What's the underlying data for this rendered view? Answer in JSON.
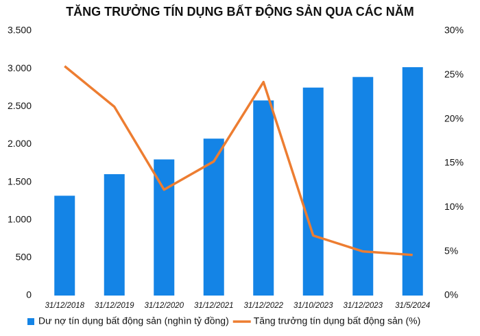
{
  "chart_data": {
    "type": "combo",
    "title": "TĂNG TRƯỞNG TÍN DỤNG BẤT ĐỘNG SẢN QUA CÁC NĂM",
    "categories": [
      "31/12/2018",
      "31/12/2019",
      "31/12/2020",
      "31/12/2021",
      "31/12/2022",
      "31/10/2023",
      "31/12/2023",
      "31/5/2024"
    ],
    "series": [
      {
        "name": "Dư nợ tín dụng bất động sản (nghìn tỷ đồng)",
        "type": "bar",
        "color": "#1484e6",
        "values": [
          1320,
          1605,
          1800,
          2075,
          2580,
          2750,
          2890,
          3020
        ]
      },
      {
        "name": "Tăng trưởng tín dụng bất động sản (%)",
        "type": "line",
        "axis": "y2",
        "color": "#ed7d31",
        "values": [
          26.0,
          21.4,
          12.0,
          15.2,
          24.2,
          6.8,
          5.0,
          4.6
        ]
      }
    ],
    "ylim": [
      0,
      3500
    ],
    "yticks": [
      0,
      {
        "value": 500,
        "label": "500"
      },
      {
        "value": 1000,
        "label": "1.000"
      },
      {
        "value": 1500,
        "label": "1.500"
      },
      {
        "value": 2000,
        "label": "2.000"
      },
      {
        "value": 2500,
        "label": "2.500"
      },
      {
        "value": 3000,
        "label": "3.000"
      },
      {
        "value": 3500,
        "label": "3.500"
      }
    ],
    "y2lim": [
      0,
      30
    ],
    "y2ticks": [
      {
        "value": 0,
        "label": "0%"
      },
      {
        "value": 5,
        "label": "5%"
      },
      {
        "value": 10,
        "label": "10%"
      },
      {
        "value": 15,
        "label": "15%"
      },
      {
        "value": 20,
        "label": "20%"
      },
      {
        "value": 25,
        "label": "25%"
      },
      {
        "value": 30,
        "label": "30%"
      }
    ],
    "legend": "bottom"
  }
}
